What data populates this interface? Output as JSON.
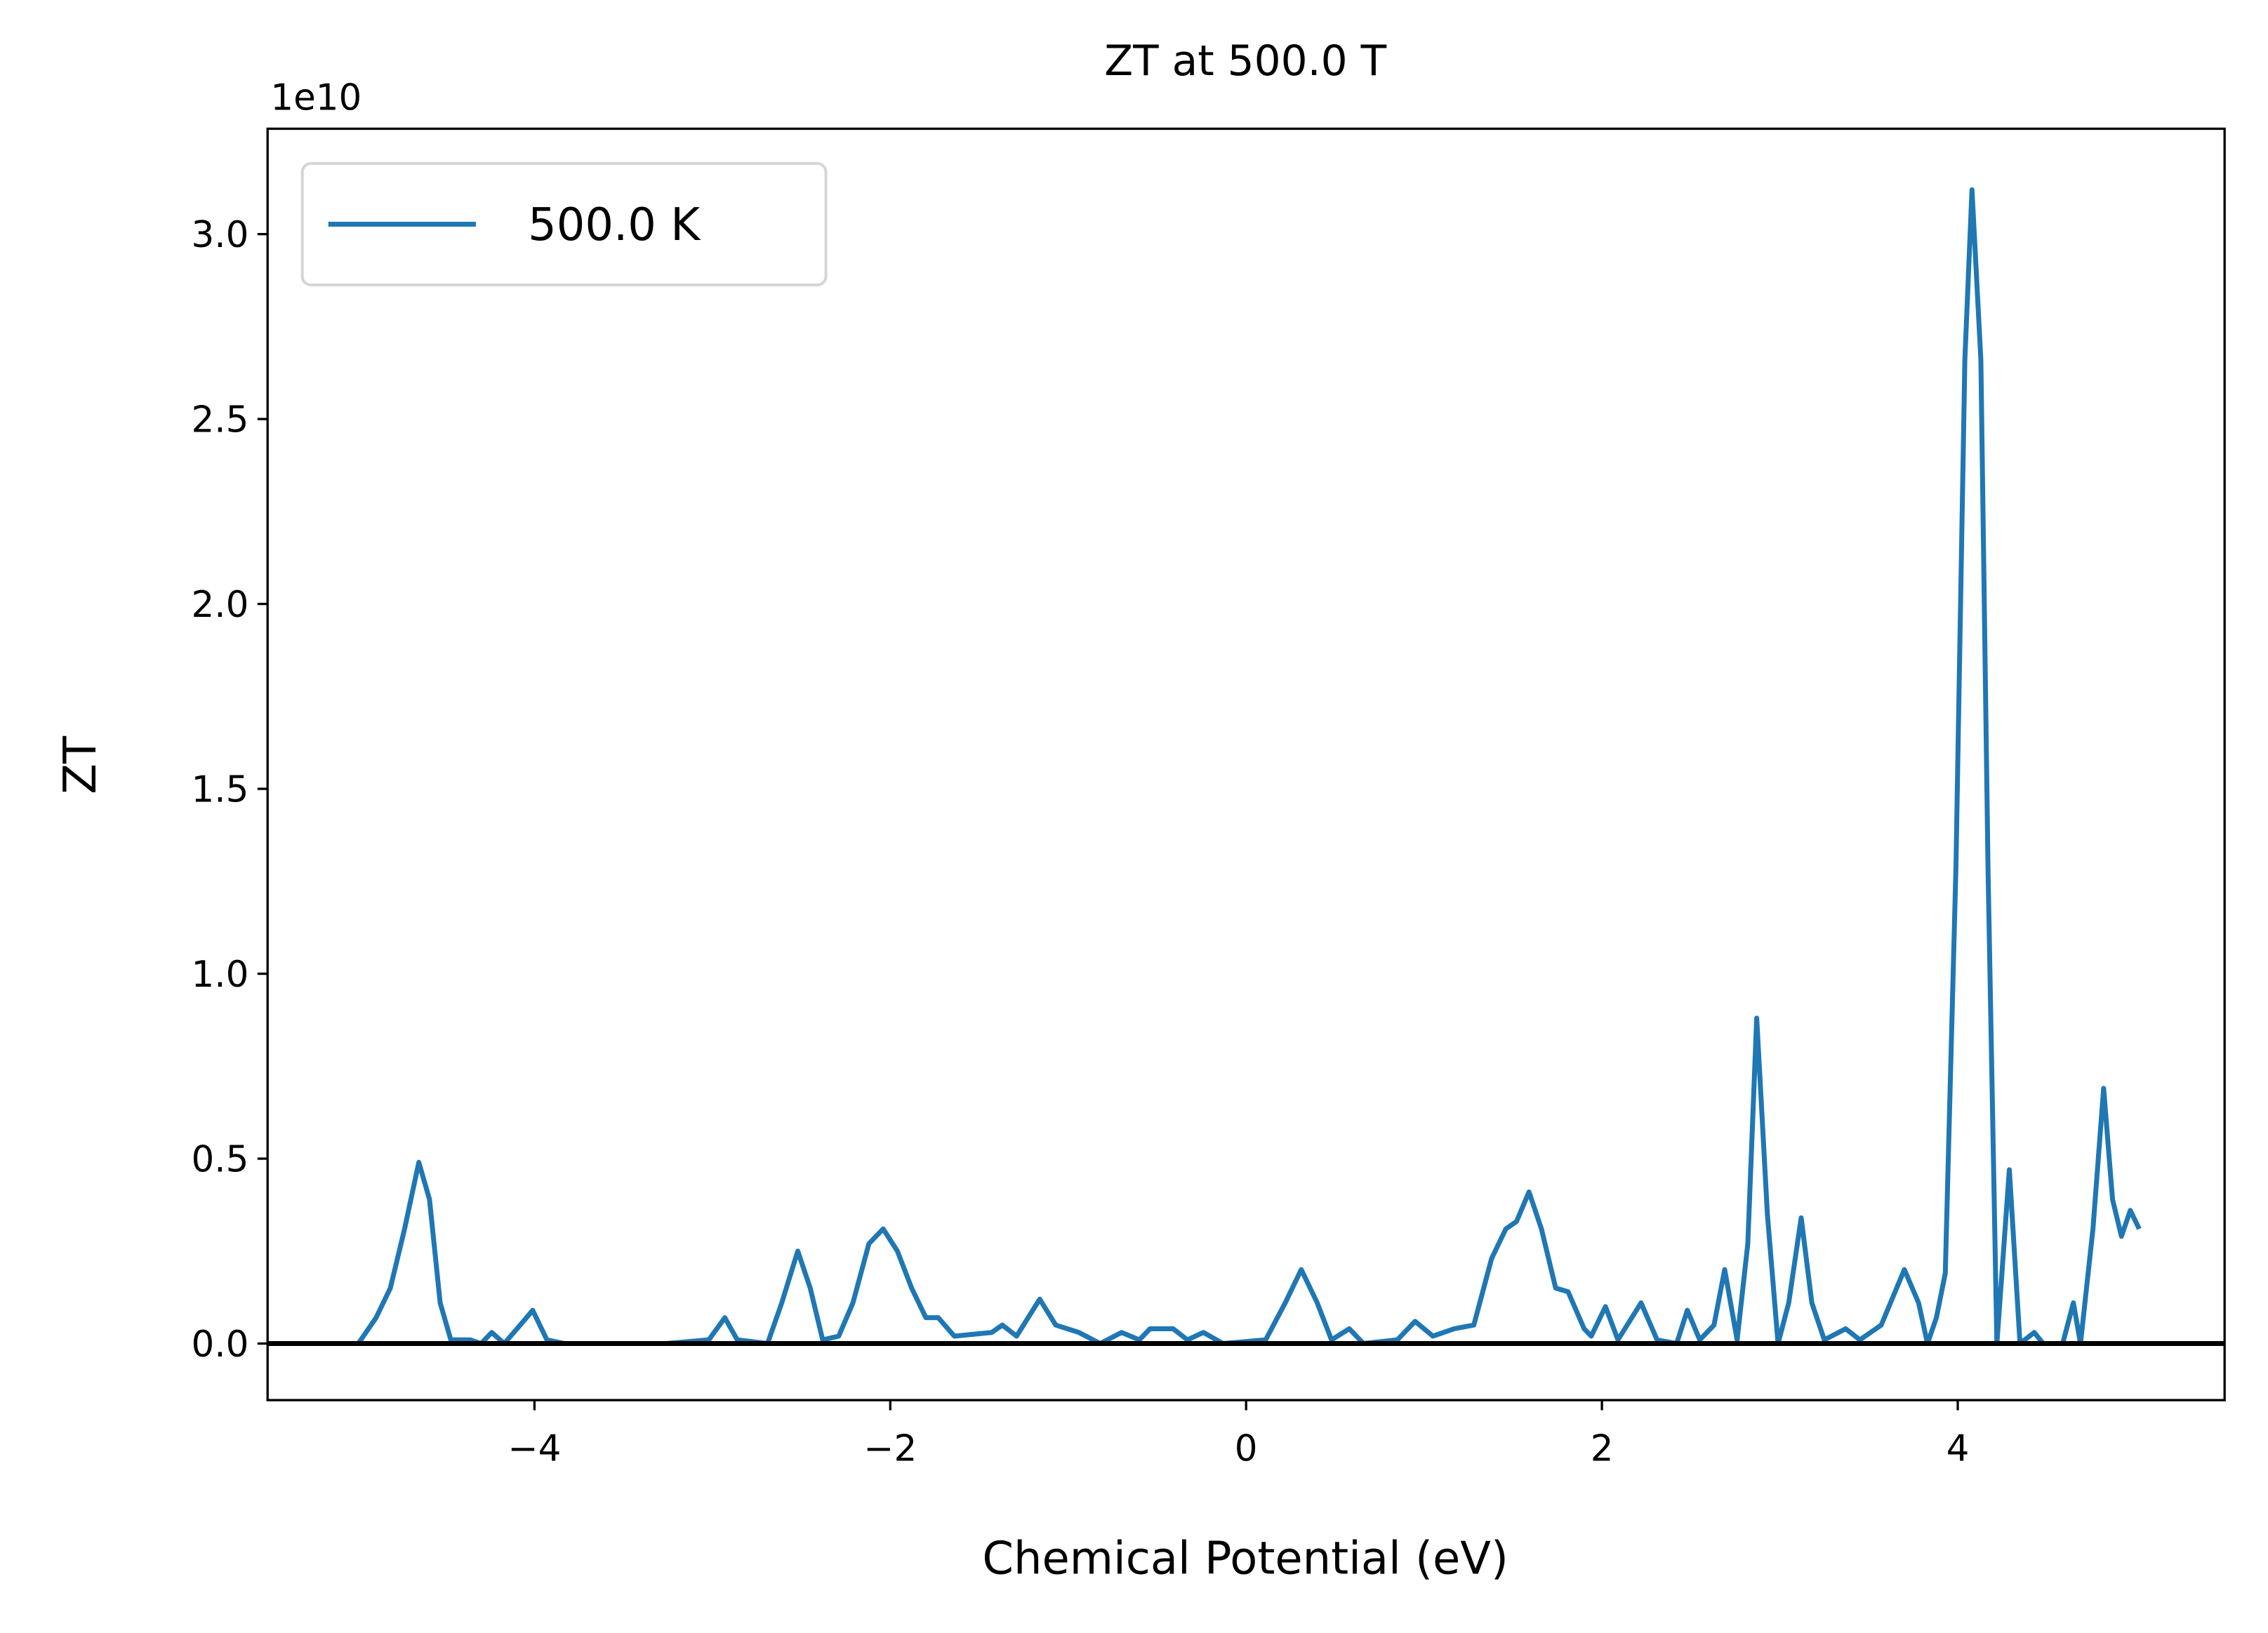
{
  "chart_data": {
    "type": "line",
    "title": "ZT at 500.0 T",
    "xlabel": "Chemical Potential (eV)",
    "ylabel": "ZT",
    "y_offset_label": "1e10",
    "x": [
      -4.99,
      -4.89,
      -4.81,
      -4.73,
      -4.65,
      -4.59,
      -4.53,
      -4.47,
      -4.36,
      -4.3,
      -4.24,
      -4.17,
      -4.08,
      -4.01,
      -3.93,
      -3.83,
      -3.26,
      -3.02,
      -2.93,
      -2.86,
      -2.69,
      -2.61,
      -2.52,
      -2.45,
      -2.38,
      -2.29,
      -2.21,
      -2.12,
      -2.04,
      -1.96,
      -1.88,
      -1.8,
      -1.73,
      -1.64,
      -1.43,
      -1.37,
      -1.29,
      -1.16,
      -1.07,
      -0.94,
      -0.82,
      -0.7,
      -0.6,
      -0.54,
      -0.41,
      -0.33,
      -0.24,
      -0.13,
      0.11,
      0.22,
      0.31,
      0.4,
      0.48,
      0.58,
      0.66,
      0.85,
      0.95,
      1.05,
      1.17,
      1.28,
      1.38,
      1.46,
      1.52,
      1.59,
      1.66,
      1.74,
      1.81,
      1.9,
      1.94,
      2.02,
      2.09,
      2.22,
      2.31,
      2.42,
      2.48,
      2.55,
      2.63,
      2.69,
      2.76,
      2.82,
      2.87,
      2.93,
      2.99,
      3.05,
      3.12,
      3.18,
      3.25,
      3.37,
      3.45,
      3.57,
      3.7,
      3.78,
      3.83,
      3.88,
      3.93,
      3.99,
      4.04,
      4.08,
      4.13,
      4.17,
      4.22,
      4.29,
      4.35,
      4.43,
      4.48,
      4.59,
      4.65,
      4.69,
      4.76,
      4.82,
      4.87,
      4.92,
      4.97,
      5.02
    ],
    "series": [
      {
        "name": "500.0 K",
        "color": "#1f77b4",
        "values": [
          0,
          0.07,
          0.15,
          0.31,
          0.49,
          0.39,
          0.11,
          0.01,
          0.01,
          0,
          0.03,
          0,
          0.05,
          0.09,
          0.01,
          0,
          0,
          0.01,
          0.07,
          0.01,
          0,
          0.11,
          0.25,
          0.15,
          0.01,
          0.02,
          0.11,
          0.27,
          0.31,
          0.25,
          0.15,
          0.07,
          0.07,
          0.02,
          0.03,
          0.05,
          0.02,
          0.12,
          0.05,
          0.03,
          0,
          0.03,
          0.01,
          0.04,
          0.04,
          0.01,
          0.03,
          0,
          0.01,
          0.11,
          0.2,
          0.11,
          0.01,
          0.04,
          0,
          0.01,
          0.06,
          0.02,
          0.04,
          0.05,
          0.23,
          0.31,
          0.33,
          0.41,
          0.31,
          0.15,
          0.14,
          0.04,
          0.02,
          0.1,
          0.01,
          0.11,
          0.01,
          0,
          0.09,
          0.01,
          0.05,
          0.2,
          0.01,
          0.27,
          0.88,
          0.35,
          0,
          0.11,
          0.34,
          0.11,
          0.01,
          0.04,
          0.01,
          0.05,
          0.2,
          0.11,
          0,
          0.07,
          0.19,
          1.29,
          2.66,
          3.12,
          2.66,
          1.29,
          0,
          0.47,
          0,
          0.03,
          0,
          0,
          0.11,
          0,
          0.31,
          0.69,
          0.39,
          0.29,
          0.36,
          0.31
        ]
      }
    ],
    "xlim": [
      -5.5,
      5.5
    ],
    "ylim": [
      -0.153,
      3.285
    ],
    "xticks": [
      {
        "value": -4,
        "label": "−4"
      },
      {
        "value": -2,
        "label": "−2"
      },
      0,
      2,
      4
    ],
    "yticks": [
      {
        "value": 0,
        "label": "0.0"
      },
      0.5,
      {
        "value": 1,
        "label": "1.0"
      },
      1.5,
      {
        "value": 2,
        "label": "2.0"
      },
      2.5,
      {
        "value": 3,
        "label": "3.0"
      }
    ],
    "hline": 0,
    "hline_color": "#000000",
    "legend": "upper left"
  }
}
